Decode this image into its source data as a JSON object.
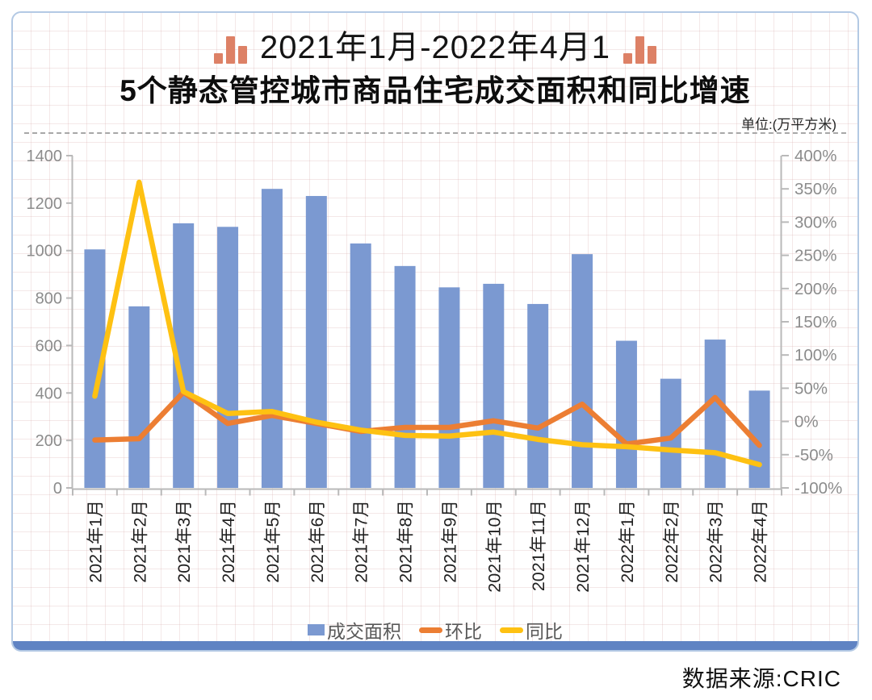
{
  "header": {
    "title_line1": "2021年1月-2022年4月1",
    "title_line2": "5个静态管控城市商品住宅成交面积和同比增速",
    "unit_label": "单位:(万平方米)"
  },
  "source_label": "数据来源:CRIC",
  "colors": {
    "bar_fill": "#7b99d1",
    "mom_line": "#ec7e33",
    "yoy_line": "#fec112",
    "title_icon": "#dd8166",
    "footer_bar": "#5f83c3",
    "axis_line": "#b9b9b9",
    "y_tick_text": "#8c8c8c",
    "x_tick_text": "#1f1f1f"
  },
  "legend": {
    "items": [
      {
        "label": "成交面积",
        "type": "bar",
        "color": "#7b99d1"
      },
      {
        "label": "环比",
        "type": "line",
        "color": "#ec7e33"
      },
      {
        "label": "同比",
        "type": "line",
        "color": "#fec112"
      }
    ]
  },
  "chart_data": {
    "type": "bar+line combo",
    "title": "5个静态管控城市商品住宅成交面积和同比增速",
    "unit": "万平方米",
    "grid": "off",
    "legend_position": "bottom",
    "categories": [
      "2021年1月",
      "2021年2月",
      "2021年3月",
      "2021年4月",
      "2021年5月",
      "2021年6月",
      "2021年7月",
      "2021年8月",
      "2021年9月",
      "2021年10月",
      "2021年11月",
      "2021年12月",
      "2022年1月",
      "2022年2月",
      "2022年3月",
      "2022年4月"
    ],
    "series": [
      {
        "name": "成交面积",
        "type": "bar",
        "axis": "left",
        "values": [
          1005,
          765,
          1115,
          1100,
          1260,
          1230,
          1030,
          935,
          845,
          860,
          775,
          985,
          620,
          460,
          625,
          410
        ]
      },
      {
        "name": "环比",
        "type": "line",
        "axis": "right",
        "unit": "%",
        "values": [
          -28,
          -26,
          44,
          -3,
          9,
          -3,
          -15,
          -9,
          -9,
          1,
          -10,
          26,
          -34,
          -25,
          36,
          -36
        ]
      },
      {
        "name": "同比",
        "type": "line",
        "axis": "right",
        "unit": "%",
        "values": [
          38,
          360,
          45,
          12,
          15,
          -1,
          -13,
          -21,
          -22,
          -16,
          -27,
          -35,
          -38,
          -43,
          -47,
          -65
        ]
      }
    ],
    "left_axis": {
      "min": 0,
      "max": 1400,
      "step": 200,
      "tick_labels": [
        "0",
        "200",
        "400",
        "600",
        "800",
        "1000",
        "1200",
        "1400"
      ]
    },
    "right_axis": {
      "min": -100,
      "max": 400,
      "step": 50,
      "suffix": "%",
      "tick_labels": [
        "-100%",
        "-50%",
        "0%",
        "50%",
        "100%",
        "150%",
        "200%",
        "250%",
        "300%",
        "350%",
        "400%"
      ]
    }
  }
}
